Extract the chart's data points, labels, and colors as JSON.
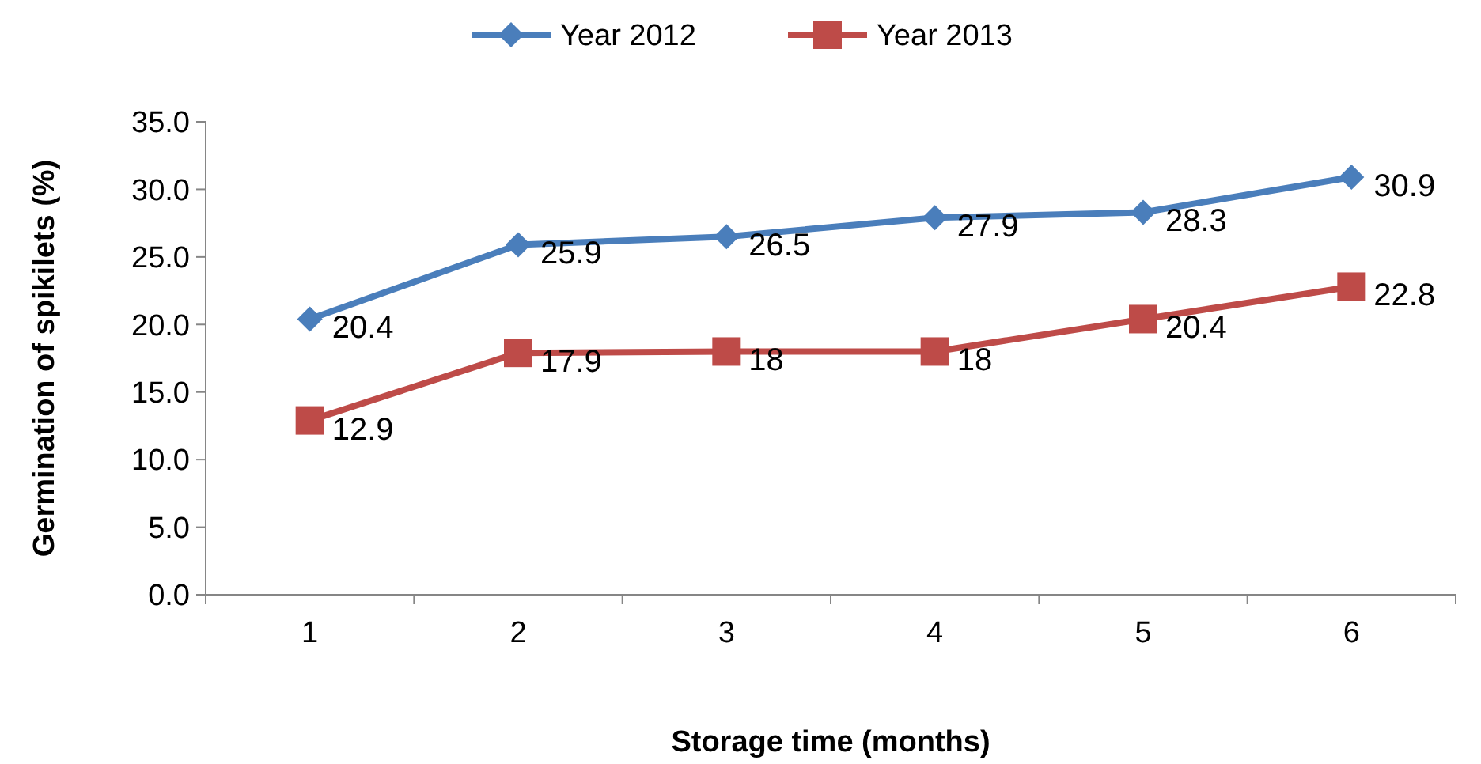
{
  "chart_data": {
    "type": "line",
    "xlabel": "Storage time (months)",
    "ylabel": "Germination of spikilets (%)",
    "categories": [
      "1",
      "2",
      "3",
      "4",
      "5",
      "6"
    ],
    "series": [
      {
        "name": "Year 2012",
        "color": "#4a7ebb",
        "marker": "diamond",
        "values": [
          20.4,
          25.9,
          26.5,
          27.9,
          28.3,
          30.9
        ]
      },
      {
        "name": "Year 2013",
        "color": "#be4b48",
        "marker": "square",
        "values": [
          12.9,
          17.9,
          18,
          18,
          20.4,
          22.8
        ]
      }
    ],
    "ylim": [
      0,
      35
    ],
    "yticks": [
      {
        "value": 0,
        "label": "0.0"
      },
      {
        "value": 5,
        "label": "5.0"
      },
      {
        "value": 10,
        "label": "10.0"
      },
      {
        "value": 15,
        "label": "15.0"
      },
      {
        "value": 20,
        "label": "20.0"
      },
      {
        "value": 25,
        "label": "25.0"
      },
      {
        "value": 30,
        "label": "30.0"
      },
      {
        "value": 35,
        "label": "35.0"
      }
    ],
    "grid": false,
    "legend": "top",
    "data_labels": true,
    "line_style": "solid"
  }
}
